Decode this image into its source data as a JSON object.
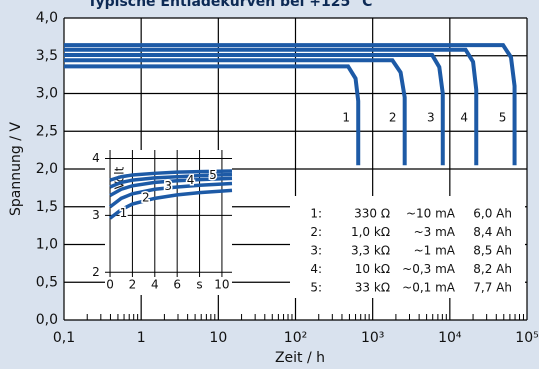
{
  "chart_data": {
    "type": "line",
    "title": "Typische Entladekurven bei +125 °C",
    "x_label": "Zeit / h",
    "y_label": "Spannung / V",
    "log_x": true,
    "grid": true,
    "color": "#1d5aa6",
    "xlim": [
      0.1,
      100000
    ],
    "xticks": [
      {
        "value": 0.1,
        "label": "0,1"
      },
      1,
      10,
      {
        "value": 100,
        "label": "10²"
      },
      {
        "value": 1000,
        "label": "10³"
      },
      {
        "value": 10000,
        "label": "10⁴"
      },
      {
        "value": 100000,
        "label": "10⁵"
      }
    ],
    "minor_xticks": [
      0.2,
      0.3,
      0.4,
      0.5,
      0.6,
      0.7,
      0.8,
      0.9,
      2,
      3,
      4,
      5,
      6,
      7,
      8,
      9,
      20,
      30,
      40,
      50,
      60,
      70,
      80,
      90,
      200,
      300,
      400,
      500,
      600,
      700,
      800,
      900,
      2000,
      3000,
      4000,
      5000,
      6000,
      7000,
      8000,
      9000,
      20000,
      30000,
      40000,
      50000,
      60000,
      70000,
      80000,
      90000
    ],
    "ylim": [
      0,
      4
    ],
    "yticks": [
      {
        "value": 0,
        "label": "0,0"
      },
      {
        "value": 0.5,
        "label": "0,5"
      },
      {
        "value": 1,
        "label": "1,0"
      },
      {
        "value": 1.5,
        "label": "1,5"
      },
      {
        "value": 2,
        "label": "2,0"
      },
      {
        "value": 2.5,
        "label": "2,5"
      },
      {
        "value": 3,
        "label": "3,0"
      },
      {
        "value": 3.5,
        "label": "3,5"
      },
      {
        "value": 4,
        "label": "4,0"
      }
    ],
    "series": [
      {
        "name": "1",
        "x": [
          0.1,
          480,
          600,
          650,
          650
        ],
        "values": [
          3.36,
          3.36,
          3.2,
          2.9,
          2.05
        ]
      },
      {
        "name": "2",
        "x": [
          0.1,
          1800,
          2300,
          2600,
          2600
        ],
        "values": [
          3.44,
          3.44,
          3.28,
          2.95,
          2.05
        ]
      },
      {
        "name": "3",
        "x": [
          0.1,
          5900,
          7300,
          8100,
          8100
        ],
        "values": [
          3.51,
          3.51,
          3.35,
          3.0,
          2.05
        ]
      },
      {
        "name": "4",
        "x": [
          0.1,
          16000,
          20000,
          22000,
          22000
        ],
        "values": [
          3.58,
          3.58,
          3.42,
          3.05,
          2.05
        ]
      },
      {
        "name": "5",
        "x": [
          0.1,
          49000,
          62000,
          69000,
          69000
        ],
        "values": [
          3.64,
          3.64,
          3.48,
          3.1,
          2.05
        ]
      }
    ],
    "table": {
      "rows": [
        [
          "1:",
          "330 Ω",
          "~10 mA",
          "6,0 Ah"
        ],
        [
          "2:",
          "1,0 kΩ",
          "~3 mA",
          "8,4 Ah"
        ],
        [
          "3:",
          "3,3 kΩ",
          "~1 mA",
          "8,5 Ah"
        ],
        [
          "4:",
          "10 kΩ",
          "~0,3 mA",
          "8,2 Ah"
        ],
        [
          "5:",
          "33 kΩ",
          "~0,1 mA",
          "7,7 Ah"
        ]
      ]
    },
    "inset": {
      "type": "line",
      "y_label": "Volt",
      "xlim": [
        -0.45,
        10.9
      ],
      "ylim": [
        1.6,
        4.15
      ],
      "xticks": [
        0,
        2,
        4,
        6,
        {
          "value": 8,
          "label": "s"
        },
        10
      ],
      "yticks": [
        2,
        3,
        4
      ],
      "x": [
        0,
        1,
        2,
        4,
        6,
        8,
        11
      ],
      "series": [
        {
          "name": "1",
          "values": [
            2.95,
            3.1,
            3.2,
            3.3,
            3.36,
            3.4,
            3.44
          ]
        },
        {
          "name": "2",
          "values": [
            3.15,
            3.3,
            3.38,
            3.46,
            3.5,
            3.53,
            3.56
          ]
        },
        {
          "name": "3",
          "values": [
            3.35,
            3.46,
            3.52,
            3.58,
            3.61,
            3.63,
            3.65
          ]
        },
        {
          "name": "4",
          "values": [
            3.5,
            3.58,
            3.62,
            3.66,
            3.68,
            3.7,
            3.72
          ]
        },
        {
          "name": "5",
          "values": [
            3.62,
            3.68,
            3.71,
            3.74,
            3.76,
            3.77,
            3.78
          ]
        }
      ]
    }
  }
}
